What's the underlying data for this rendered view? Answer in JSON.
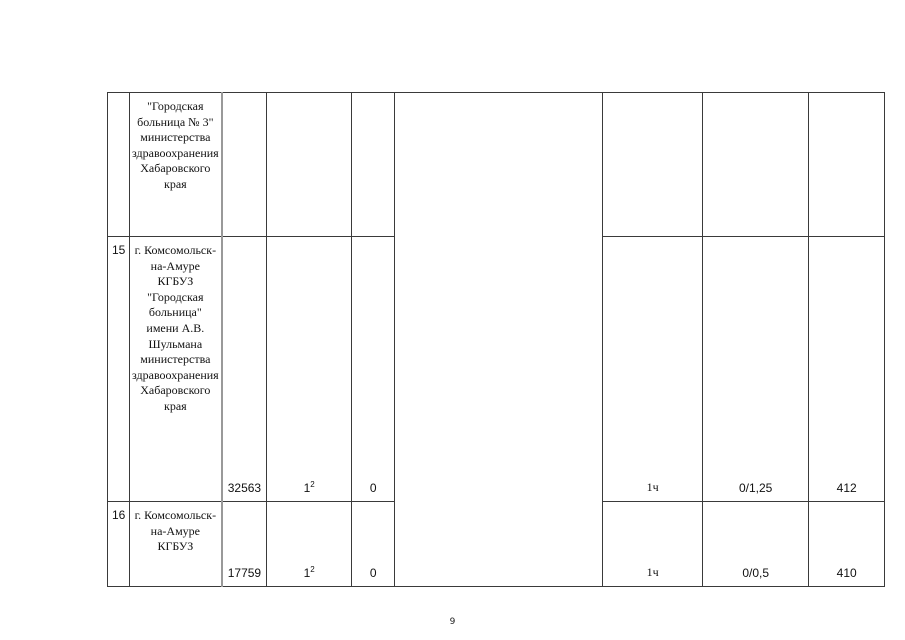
{
  "rows": [
    {
      "num": "",
      "name": "\"Городская больница № 3\" министерства здравоохранения Хабаровского края",
      "c3": "",
      "c4": "",
      "c4sup": "",
      "c5": "",
      "c7": "",
      "c8": "",
      "c9": ""
    },
    {
      "num": "15",
      "name": "г. Комсомольск-на-Амуре КГБУЗ \"Городская больница\" имени А.В. Шульмана министерства здравоохранения Хабаровского края",
      "c3": "32563",
      "c4": "1",
      "c4sup": "2",
      "c5": "0",
      "c7": "1ч",
      "c8": "0/1,25",
      "c9": "412"
    },
    {
      "num": "16",
      "name": "г. Комсомольск-на-Амуре КГБУЗ",
      "c3": "17759",
      "c4": "1",
      "c4sup": "2",
      "c5": "0",
      "c7": "1ч",
      "c8": "0/0,5",
      "c9": "410"
    }
  ],
  "page_number": "9"
}
